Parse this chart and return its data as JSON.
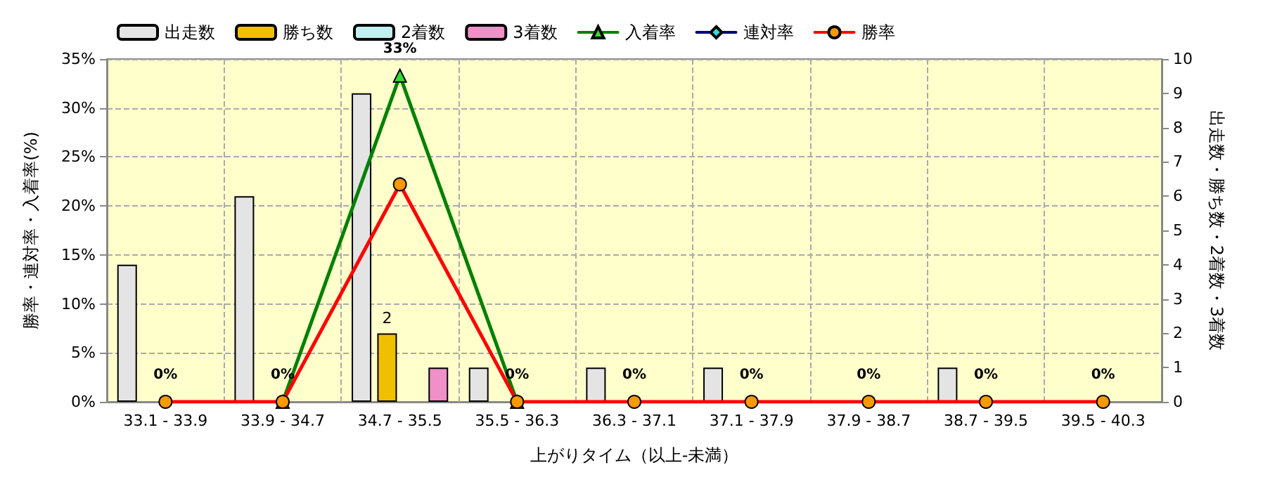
{
  "chart_data": {
    "type": "bar",
    "xlabel": "上がりタイム（以上-未満）",
    "ylabel": "勝率・連対率・入着率(%)",
    "y2label": "出走数・勝ち数・2着数・3着数",
    "categories": [
      "33.1 - 33.9",
      "33.9 - 34.7",
      "34.7 - 35.5",
      "35.5 - 36.3",
      "36.3 - 37.1",
      "37.1 - 37.9",
      "37.9 - 38.7",
      "38.7 - 39.5",
      "39.5 - 40.3"
    ],
    "series": [
      {
        "name": "出走数",
        "axis": "y2",
        "color": "#e4e4e4",
        "values": [
          4,
          6,
          9,
          1,
          1,
          1,
          null,
          1,
          null
        ]
      },
      {
        "name": "勝ち数",
        "axis": "y2",
        "color": "#f0c000",
        "values": [
          null,
          null,
          2,
          null,
          null,
          null,
          null,
          null,
          null
        ],
        "value_labels": [
          null,
          null,
          "2",
          null,
          null,
          null,
          null,
          null,
          null
        ]
      },
      {
        "name": "2着数",
        "axis": "y2",
        "color": "#c0f0f0",
        "values": [
          null,
          null,
          null,
          null,
          null,
          null,
          null,
          null,
          null
        ]
      },
      {
        "name": "3着数",
        "axis": "y2",
        "color": "#f090c8",
        "values": [
          null,
          null,
          1,
          null,
          null,
          null,
          null,
          null,
          null
        ]
      },
      {
        "name": "入着率",
        "type": "line",
        "color": "#008000",
        "marker": "triangle",
        "values": [
          null,
          0,
          33.3,
          0,
          null,
          null,
          null,
          null,
          null
        ],
        "value_labels": [
          null,
          null,
          "33%",
          null,
          null,
          null,
          null,
          null,
          null
        ]
      },
      {
        "name": "連対率",
        "type": "line",
        "color": "#000080",
        "marker": "diamond",
        "values": [
          null,
          null,
          null,
          null,
          null,
          null,
          null,
          null,
          null
        ]
      },
      {
        "name": "勝率",
        "type": "line",
        "color": "#ff0000",
        "marker": "circle",
        "values": [
          0,
          0,
          22.2,
          0,
          0,
          0,
          0,
          0,
          0
        ],
        "value_labels": [
          "0%",
          "0%",
          null,
          "0%",
          "0%",
          "0%",
          "0%",
          "0%",
          "0%"
        ]
      }
    ],
    "ylim": [
      0,
      35
    ],
    "yticks": [
      {
        "value": 0,
        "label": "0%"
      },
      {
        "value": 5,
        "label": "5%"
      },
      {
        "value": 10,
        "label": "10%"
      },
      {
        "value": 15,
        "label": "15%"
      },
      {
        "value": 20,
        "label": "20%"
      },
      {
        "value": 25,
        "label": "25%"
      },
      {
        "value": 30,
        "label": "30%"
      },
      {
        "value": 35,
        "label": "35%"
      }
    ],
    "y2lim": [
      0,
      10
    ],
    "y2ticks": [
      0,
      1,
      2,
      3,
      4,
      5,
      6,
      7,
      8,
      9,
      10
    ],
    "grid": true,
    "legend": "top left"
  }
}
